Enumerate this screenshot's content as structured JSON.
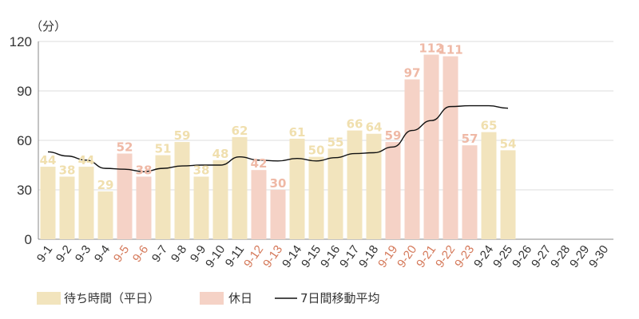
{
  "chart_data": {
    "type": "bar",
    "unit_label": "（分）",
    "categories": [
      "9-1",
      "9-2",
      "9-3",
      "9-4",
      "9-5",
      "9-6",
      "9-7",
      "9-8",
      "9-9",
      "9-10",
      "9-11",
      "9-12",
      "9-13",
      "9-14",
      "9-15",
      "9-16",
      "9-17",
      "9-18",
      "9-19",
      "9-20",
      "9-21",
      "9-22",
      "9-23",
      "9-24",
      "9-25",
      "9-26",
      "9-27",
      "9-28",
      "9-29",
      "9-30"
    ],
    "holiday_categories": [
      "9-5",
      "9-6",
      "9-12",
      "9-13",
      "9-19",
      "9-20",
      "9-21",
      "9-22",
      "9-23"
    ],
    "series": [
      {
        "name": "待ち時間（平日）",
        "color": "#f2e4bd",
        "label_color": "#f0dfae",
        "values": [
          44,
          38,
          44,
          29,
          null,
          null,
          51,
          59,
          38,
          48,
          62,
          null,
          null,
          61,
          50,
          55,
          66,
          64,
          null,
          null,
          null,
          null,
          null,
          65,
          54,
          null,
          null,
          null,
          null,
          null
        ]
      },
      {
        "name": "休日",
        "color": "#f5d2c6",
        "label_color": "#efb9a6",
        "values": [
          null,
          null,
          null,
          null,
          52,
          38,
          null,
          null,
          null,
          null,
          null,
          42,
          30,
          null,
          null,
          null,
          null,
          null,
          59,
          97,
          112,
          111,
          57,
          null,
          null,
          null,
          null,
          null,
          null,
          null
        ]
      },
      {
        "name": "7日間移動平均",
        "type": "line",
        "color": "#111111",
        "values": [
          53,
          50.5,
          48,
          43,
          42.5,
          41,
          43,
          44.5,
          45,
          45,
          50,
          48,
          47.5,
          49,
          47.5,
          49.5,
          52,
          52.5,
          56,
          66,
          72,
          80.5,
          81,
          81,
          79.5,
          null,
          null,
          null,
          null,
          null
        ]
      }
    ],
    "ylim": [
      0,
      120
    ],
    "yticks": [
      0,
      30,
      60,
      90,
      120
    ],
    "tick_color_weekday": "#333333",
    "tick_color_holiday": "#d57a5b",
    "grid": true,
    "legend": "bottom-left"
  }
}
